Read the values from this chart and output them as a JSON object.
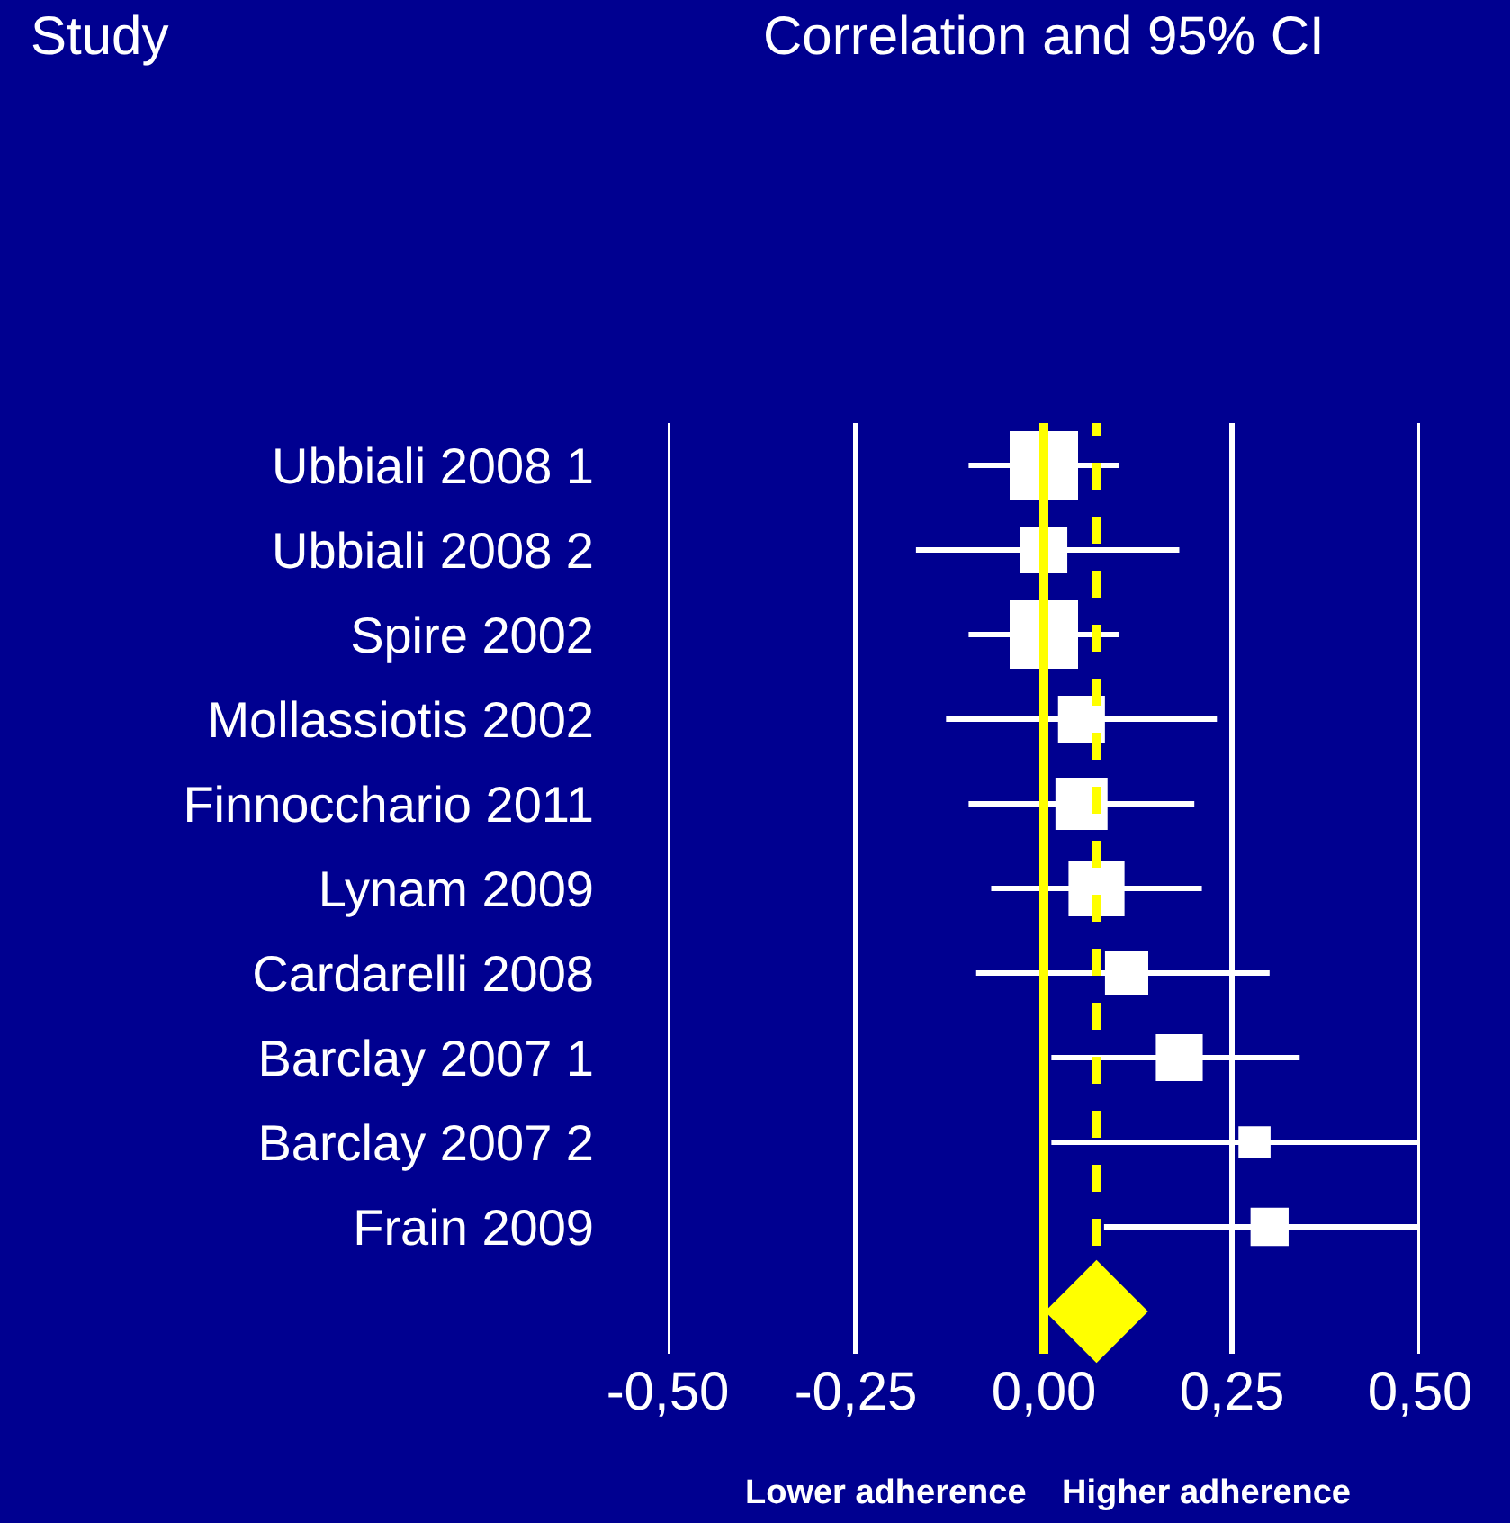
{
  "chart_data": {
    "type": "bubble",
    "orientation": "horizontal",
    "title": "Correlation and 95% CI",
    "categories": [
      "Ubbiali 2008 1",
      "Ubbiali 2008 2",
      "Spire 2002",
      "Mollassiotis 2002",
      "Finnocchario 2011",
      "Lynam 2009",
      "Cardarelli 2008",
      "Barclay 2007 1",
      "Barclay 2007 2",
      "Frain 2009",
      null
    ],
    "series": [
      {
        "color": "#ffffff",
        "marker": "square",
        "values": [
          0.0,
          0.0,
          0.0,
          0.05,
          0.05,
          0.07,
          0.11,
          0.18,
          0.28,
          0.3,
          null
        ],
        "sizes": [
          1,
          0.47,
          1,
          0.47,
          0.58,
          0.67,
          0.4,
          0.47,
          0.22,
          0.31,
          null
        ],
        "errors": [
          [
            -0.1,
            0.1
          ],
          [
            -0.17,
            0.18
          ],
          [
            -0.1,
            0.1
          ],
          [
            -0.13,
            0.23
          ],
          [
            -0.1,
            0.2
          ],
          [
            -0.07,
            0.21
          ],
          [
            -0.09,
            0.3
          ],
          [
            0.01,
            0.34
          ],
          [
            0.01,
            0.5
          ],
          [
            0.08,
            0.5
          ],
          null
        ]
      },
      {
        "type": "scatter",
        "color": "#ffff00",
        "marker": "diamond",
        "values": [
          null,
          null,
          null,
          null,
          null,
          null,
          null,
          null,
          null,
          null,
          0.07
        ],
        "errors": [
          null,
          null,
          null,
          null,
          null,
          null,
          null,
          null,
          null,
          null,
          [
            0.01,
            0.13
          ]
        ]
      }
    ],
    "xlim": [
      -0.5,
      0.5
    ],
    "xticks": [
      {
        "value": -0.5,
        "label": "-0,50"
      },
      {
        "value": -0.25,
        "label": "-0,25"
      },
      {
        "value": 0,
        "label": "0,00"
      },
      {
        "value": 0.25,
        "label": "0,25"
      },
      {
        "value": 0.5,
        "label": "0,50"
      }
    ],
    "grid": "x",
    "ref_lines": [
      {
        "axis": "x",
        "value": 0,
        "color": "#ffff00",
        "line_style": "solid"
      },
      {
        "axis": "x",
        "value": 0.07,
        "color": "#ffff00",
        "line_style": "dashed"
      }
    ],
    "annotations": [
      "Study",
      "Lower adherence",
      "Higher adherence"
    ]
  }
}
